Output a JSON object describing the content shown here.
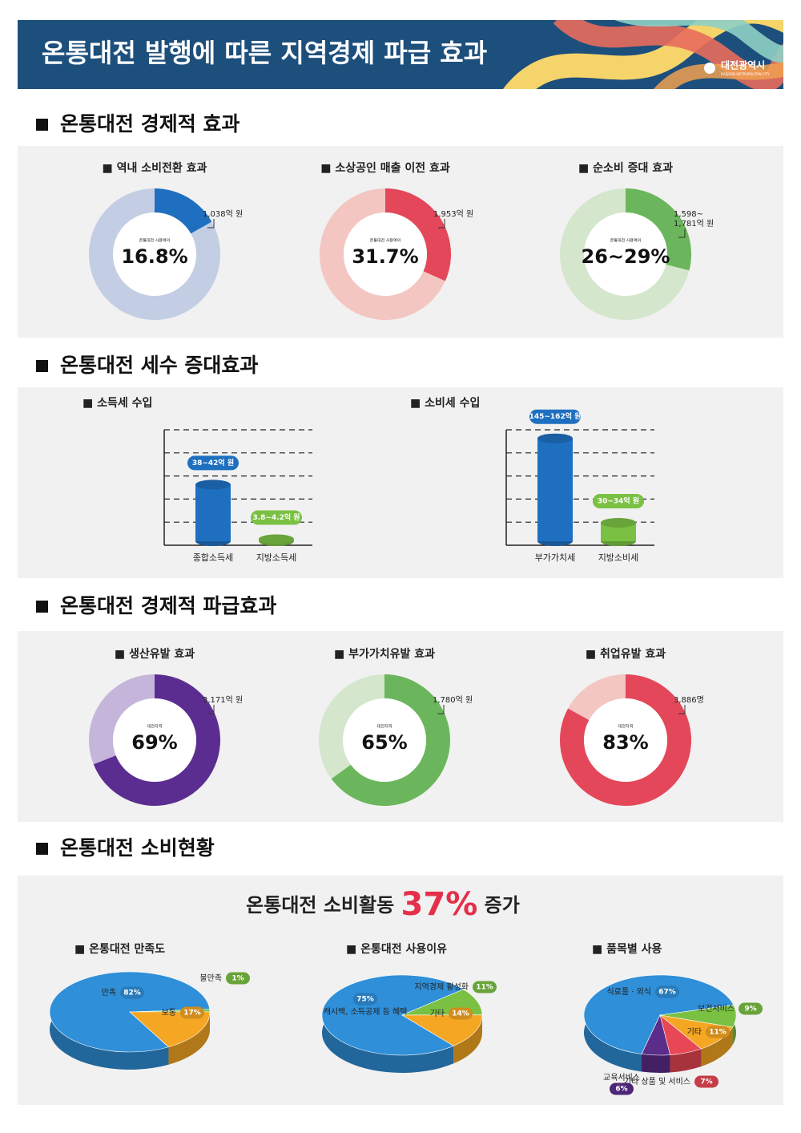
{
  "header": {
    "title": "온통대전 발행에 따른 지역경제 파급 효과",
    "logo": "대전광역시",
    "logo_sub": "DAEJEON METROPOLITAN CITY"
  },
  "sections": [
    {
      "title": "온통대전 경제적 효과"
    },
    {
      "title": "온통대전 세수 증대효과"
    },
    {
      "title": "온통대전 경제적 파급효과"
    },
    {
      "title": "온통대전 소비현황",
      "headline": [
        "온통대전 소비활동",
        "37%",
        "증가"
      ]
    }
  ],
  "chart_data": [
    {
      "type": "donut",
      "title": "■ 역내 소비전환 효과",
      "caption": "온통대전 사용액의",
      "values": [
        16.8,
        83.2
      ],
      "value_labels": [
        "16.8%",
        null
      ],
      "colors": [
        "#1f6fc0",
        "#c3cee4"
      ],
      "annotation": [
        "1,038억 원"
      ]
    },
    {
      "type": "donut",
      "title": "■ 소상공인 매출 이전 효과",
      "caption": "온통대전 사용액의",
      "values": [
        31.7,
        68.3
      ],
      "value_labels": [
        "31.7%",
        null
      ],
      "colors": [
        "#e4475a",
        "#f3c6c2"
      ],
      "annotation": [
        "1,953억 원"
      ]
    },
    {
      "type": "donut",
      "title": "■ 순소비 증대 효과",
      "caption": "온통대전 사용액의",
      "values": [
        29,
        71
      ],
      "value_labels": [
        "26~29%",
        null
      ],
      "colors": [
        "#6bb65c",
        "#d4e6cb"
      ],
      "annotation": [
        "1,598~",
        "1,781억 원"
      ]
    },
    {
      "type": "bar",
      "title": "■ 소득세 수입",
      "categories": [
        "종합소득세",
        "지방소득세"
      ],
      "values": [
        42,
        4.2
      ],
      "value_labels": [
        "38~42억 원",
        "3.8~4.2억 원"
      ],
      "colors": [
        "#1f6fc0",
        "#7ac143"
      ],
      "ylim": [
        0,
        80
      ],
      "yticks": [
        16,
        32,
        48,
        64,
        80
      ],
      "grid": true
    },
    {
      "type": "bar",
      "title": "■ 소비세 수입",
      "categories": [
        "부가가치세",
        "지방소비세"
      ],
      "values": [
        162,
        34
      ],
      "value_labels": [
        "145~162억 원",
        "30~34억 원"
      ],
      "colors": [
        "#1f6fc0",
        "#7ac143"
      ],
      "ylim": [
        0,
        175
      ],
      "yticks": [
        35,
        70,
        105,
        140,
        175
      ],
      "grid": true
    },
    {
      "type": "donut",
      "title": "■ 생산유발 효과",
      "caption": "대전지역",
      "values": [
        69,
        31
      ],
      "value_labels": [
        "69%",
        null
      ],
      "colors": [
        "#5c2d91",
        "#c5b5da"
      ],
      "annotation": [
        "3,171억 원"
      ]
    },
    {
      "type": "donut",
      "title": "■ 부가가치유발 효과",
      "caption": "대전지역",
      "values": [
        65,
        35
      ],
      "value_labels": [
        "65%",
        null
      ],
      "colors": [
        "#6bb65c",
        "#d4e6cb"
      ],
      "annotation": [
        "1,780억 원"
      ]
    },
    {
      "type": "donut",
      "title": "■ 취업유발 효과",
      "caption": "대전지역",
      "values": [
        83,
        17
      ],
      "value_labels": [
        "83%",
        null
      ],
      "colors": [
        "#e4475a",
        "#f3c6c2"
      ],
      "annotation": [
        "3,886명"
      ]
    },
    {
      "type": "pie",
      "title": "■ 온통대전 만족도",
      "categories": [
        "만족",
        "불만족",
        "보통"
      ],
      "values": [
        82,
        1,
        17
      ],
      "value_labels": [
        "82%",
        "1%",
        "17%"
      ],
      "colors": [
        "#2f8fd8",
        "#7ac143",
        "#f5a623"
      ]
    },
    {
      "type": "pie",
      "title": "■ 온통대전 사용이유",
      "categories": [
        "캐시백, 소득공제 등 혜택",
        "지역경제 활성화",
        "기타"
      ],
      "values": [
        75,
        11,
        14
      ],
      "value_labels": [
        "75%",
        "11%",
        "14%"
      ],
      "colors": [
        "#2f8fd8",
        "#7ac143",
        "#f5a623"
      ]
    },
    {
      "type": "pie",
      "title": "■ 품목별 사용",
      "categories": [
        "식료품 · 외식",
        "보건서비스",
        "기타",
        "기타 상품 및 서비스",
        "교육서비스"
      ],
      "values": [
        67,
        9,
        11,
        7,
        6
      ],
      "value_labels": [
        "67%",
        "9%",
        "11%",
        "7%",
        "6%"
      ],
      "colors": [
        "#2f8fd8",
        "#7ac143",
        "#f5a623",
        "#e84855",
        "#5b2d8a"
      ]
    }
  ]
}
